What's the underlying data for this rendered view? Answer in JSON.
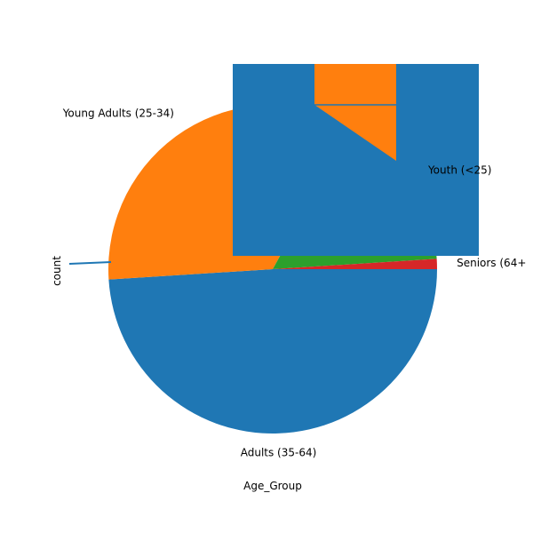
{
  "chart_data": {
    "type": "pie",
    "xlabel": "Age_Group",
    "ylabel": "count",
    "categories": [
      "Adults (35-64)",
      "Young Adults (25-34)",
      "Youth (<25)",
      "Seniors (64+"
    ],
    "values": [
      49,
      34,
      16,
      1
    ],
    "colors": [
      "#1f77b4",
      "#ff7f0e",
      "#2ca02c",
      "#d62728"
    ],
    "start_direction": "right",
    "direction": "clockwise"
  }
}
